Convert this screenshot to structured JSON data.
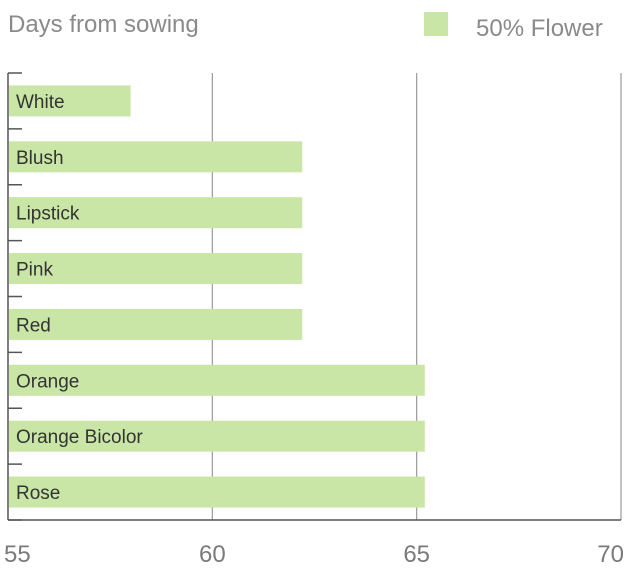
{
  "chart_data": {
    "type": "bar",
    "orientation": "horizontal",
    "title": "Days from sowing",
    "legend": {
      "position": "top-right",
      "entries": [
        {
          "name": "50% Flower",
          "color": "#c9e6a6"
        }
      ]
    },
    "categories": [
      "White",
      "Blush",
      "Lipstick",
      "Pink",
      "Red",
      "Orange",
      "Orange Bicolor",
      "Rose"
    ],
    "series": [
      {
        "name": "50% Flower",
        "color": "#c9e6a6",
        "values": [
          58,
          62.2,
          62.2,
          62.2,
          62.2,
          65.2,
          65.2,
          65.2
        ]
      }
    ],
    "xlim": [
      55,
      70
    ],
    "xticks": [
      "55",
      "60",
      "65",
      "70"
    ],
    "grid": "vertical",
    "colors": {
      "bar": "#c9e6a6",
      "axis": "#555555",
      "grid": "#9a9a9a",
      "text": "#8a8a8a"
    }
  }
}
